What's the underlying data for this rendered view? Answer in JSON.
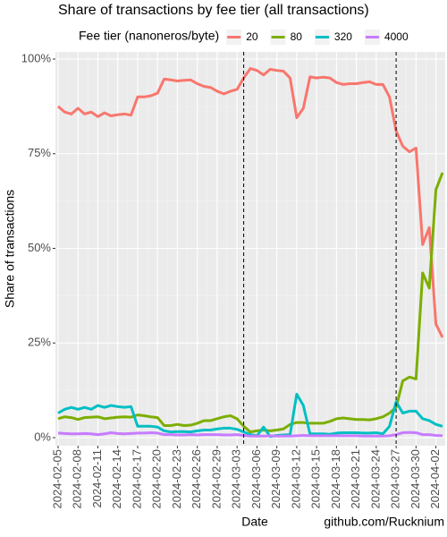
{
  "chart_data": {
    "type": "line",
    "title": "Share of transactions by fee tier (all transactions)",
    "xlabel": "Date",
    "ylabel": "Share of transactions",
    "caption": "github.com/Rucknium",
    "legend_title": "Fee tier (nanoneros/byte)",
    "legend_position": "top",
    "grid": true,
    "x": [
      "2024-02-05",
      "2024-02-06",
      "2024-02-07",
      "2024-02-08",
      "2024-02-09",
      "2024-02-10",
      "2024-02-11",
      "2024-02-12",
      "2024-02-13",
      "2024-02-14",
      "2024-02-15",
      "2024-02-16",
      "2024-02-17",
      "2024-02-18",
      "2024-02-19",
      "2024-02-20",
      "2024-02-21",
      "2024-02-22",
      "2024-02-23",
      "2024-02-24",
      "2024-02-25",
      "2024-02-26",
      "2024-02-27",
      "2024-02-28",
      "2024-02-29",
      "2024-03-01",
      "2024-03-02",
      "2024-03-03",
      "2024-03-04",
      "2024-03-05",
      "2024-03-06",
      "2024-03-07",
      "2024-03-08",
      "2024-03-09",
      "2024-03-10",
      "2024-03-11",
      "2024-03-12",
      "2024-03-13",
      "2024-03-14",
      "2024-03-15",
      "2024-03-16",
      "2024-03-17",
      "2024-03-18",
      "2024-03-19",
      "2024-03-20",
      "2024-03-21",
      "2024-03-22",
      "2024-03-23",
      "2024-03-24",
      "2024-03-25",
      "2024-03-26",
      "2024-03-27",
      "2024-03-28",
      "2024-03-29",
      "2024-03-30",
      "2024-03-31",
      "2024-04-01",
      "2024-04-02",
      "2024-04-03"
    ],
    "xticks": [
      "2024-02-05",
      "2024-02-08",
      "2024-02-11",
      "2024-02-14",
      "2024-02-17",
      "2024-02-20",
      "2024-02-23",
      "2024-02-26",
      "2024-02-29",
      "2024-03-03",
      "2024-03-06",
      "2024-03-09",
      "2024-03-12",
      "2024-03-15",
      "2024-03-18",
      "2024-03-21",
      "2024-03-24",
      "2024-03-27",
      "2024-03-30",
      "2024-04-02"
    ],
    "vlines": [
      "2024-03-04",
      "2024-03-27"
    ],
    "ylim": [
      0,
      100
    ],
    "yticks": [
      {
        "value": 0,
        "label": "0%"
      },
      {
        "value": 25,
        "label": "25%"
      },
      {
        "value": 50,
        "label": "50%"
      },
      {
        "value": 75,
        "label": "75%"
      },
      {
        "value": 100,
        "label": "100%"
      }
    ],
    "series": [
      {
        "name": "20",
        "color": "#F8766D",
        "values": [
          87.5,
          86,
          85.5,
          87,
          85.5,
          86,
          84.8,
          85.8,
          85,
          85.3,
          85.5,
          85.2,
          90,
          90,
          90.3,
          91,
          94.7,
          94.5,
          94.2,
          94.4,
          94.5,
          93.5,
          92.8,
          92.5,
          91.5,
          90.8,
          91.5,
          92,
          95,
          97.5,
          97,
          95.8,
          97.3,
          97,
          96.8,
          95,
          84.5,
          87,
          95.3,
          95,
          95.2,
          95,
          93.8,
          93.3,
          93.5,
          93.5,
          93.8,
          94,
          93.3,
          93.3,
          90,
          81,
          77,
          75.5,
          76.5,
          51,
          55.5,
          30,
          26.5
        ]
      },
      {
        "name": "80",
        "color": "#7CAE00",
        "values": [
          5,
          5.5,
          5.3,
          4.8,
          5.3,
          5.4,
          5.5,
          5,
          5.2,
          5.4,
          5.5,
          5.4,
          6,
          5.8,
          5.5,
          5.3,
          3.2,
          3.2,
          3.5,
          3.2,
          3.3,
          3.8,
          4.5,
          4.5,
          5,
          5.5,
          5.8,
          5,
          3,
          1.5,
          1.8,
          2,
          1.8,
          2,
          2.3,
          3.5,
          4,
          4,
          3.8,
          3.8,
          3.8,
          4.3,
          5,
          5.2,
          5,
          4.8,
          4.8,
          4.7,
          5,
          5.5,
          6.5,
          8,
          15,
          16,
          15.5,
          43.5,
          39.5,
          65.5,
          70
        ]
      },
      {
        "name": "320",
        "color": "#00BFC4",
        "values": [
          6.5,
          7.5,
          8,
          7.5,
          8,
          7.5,
          8.5,
          8,
          8.5,
          8.2,
          8,
          8.2,
          3,
          3,
          3,
          2.8,
          1.8,
          1.5,
          1.6,
          1.6,
          1.5,
          1.8,
          2,
          2,
          2.3,
          2.5,
          2.5,
          2.2,
          1.5,
          0.8,
          0.5,
          2.8,
          0.3,
          0.6,
          0.7,
          0.8,
          11.5,
          8.5,
          1,
          1,
          1,
          0.9,
          1.2,
          1.3,
          1.3,
          1.3,
          1.2,
          1.2,
          1.3,
          1,
          3,
          9.5,
          6.5,
          7,
          7,
          5,
          4.5,
          3.5,
          3
        ]
      },
      {
        "name": "4000",
        "color": "#C77CFF",
        "values": [
          1.2,
          1.1,
          1,
          1,
          1.1,
          1,
          0.8,
          1,
          1.3,
          1.1,
          1,
          1.1,
          1.2,
          1.2,
          1.3,
          1.2,
          0.8,
          0.8,
          0.7,
          0.7,
          0.8,
          0.7,
          0.8,
          0.8,
          0.8,
          0.7,
          0.7,
          0.8,
          0.6,
          0.4,
          0.4,
          0.4,
          0.5,
          0.4,
          0.4,
          0.4,
          0.5,
          0.6,
          0.5,
          0.5,
          0.5,
          0.5,
          0.5,
          0.5,
          0.5,
          0.5,
          0.4,
          0.4,
          0.4,
          0.4,
          0.5,
          0.8,
          1.3,
          1.4,
          1.3,
          0.8,
          0.8,
          0.6,
          0.5
        ]
      }
    ]
  }
}
